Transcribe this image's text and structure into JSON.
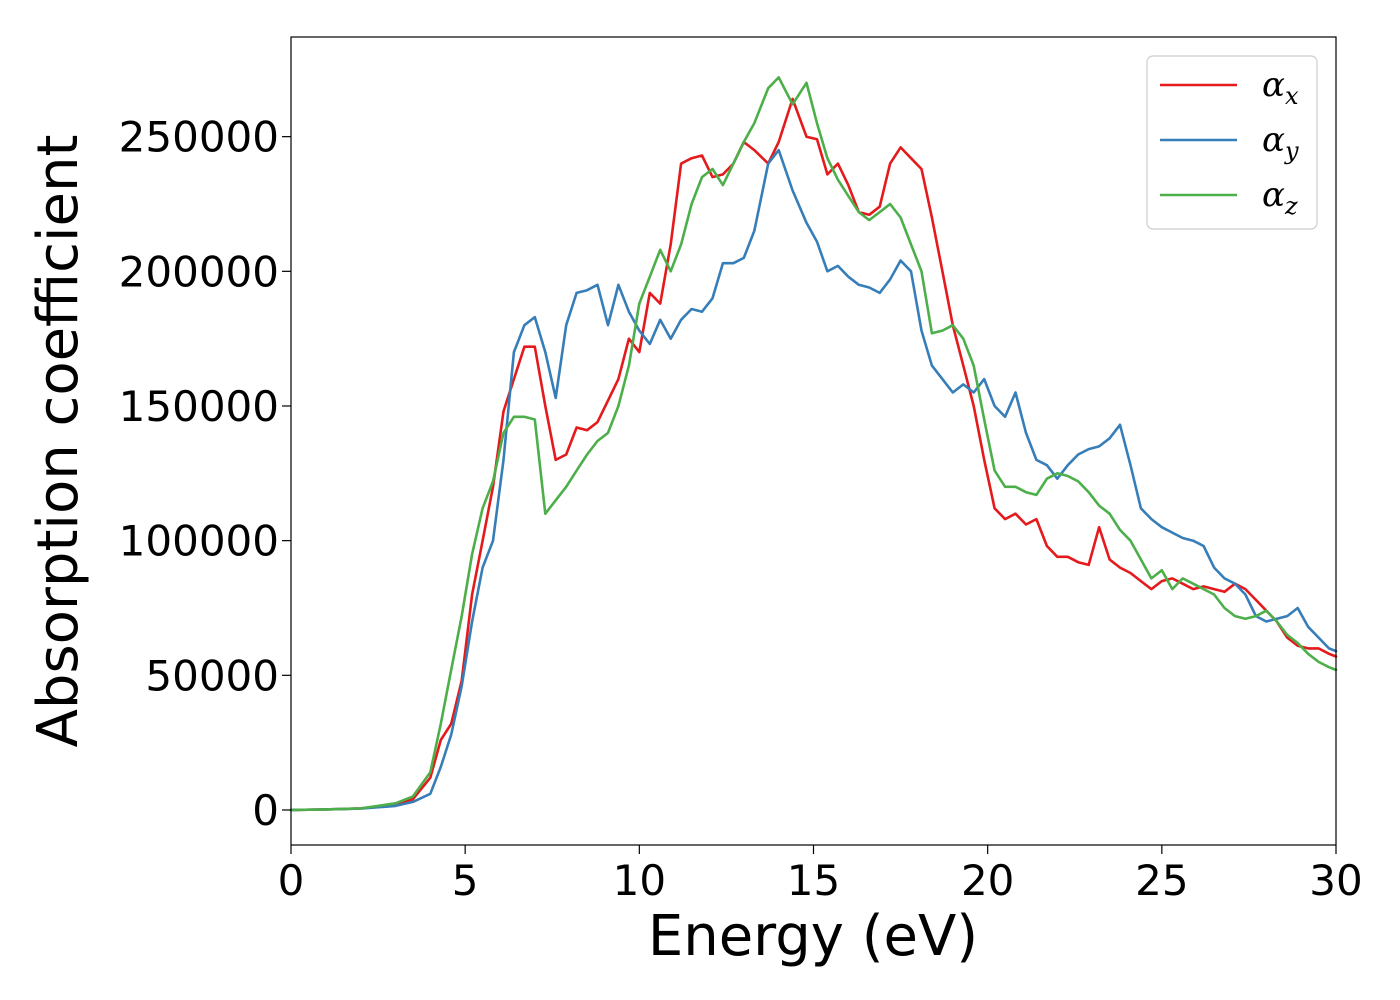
{
  "chart_data": {
    "type": "line",
    "title": "",
    "xlabel": "Energy (eV)",
    "ylabel": "Absorption coefficient",
    "xlim": [
      0,
      30
    ],
    "ylim": [
      -13000,
      287000
    ],
    "x_ticks": [
      0,
      5,
      10,
      15,
      20,
      25,
      30
    ],
    "y_ticks": [
      0,
      50000,
      100000,
      150000,
      200000,
      250000
    ],
    "x_tick_labels": [
      "0",
      "5",
      "10",
      "15",
      "20",
      "25",
      "30"
    ],
    "y_tick_labels": [
      "0",
      "50000",
      "100000",
      "150000",
      "200000",
      "250000"
    ],
    "grid": false,
    "legend_position": "top-right",
    "series": [
      {
        "name": "α_x",
        "label_base": "α",
        "label_sub": "x",
        "color": "#e41a1c",
        "x": [
          0,
          1,
          2,
          3,
          3.5,
          4,
          4.3,
          4.6,
          4.9,
          5.2,
          5.5,
          5.8,
          6.1,
          6.4,
          6.7,
          7.0,
          7.3,
          7.6,
          7.9,
          8.2,
          8.5,
          8.8,
          9.1,
          9.4,
          9.7,
          10.0,
          10.3,
          10.6,
          10.9,
          11.2,
          11.5,
          11.8,
          12.1,
          12.4,
          12.7,
          13.0,
          13.3,
          13.7,
          14.0,
          14.4,
          14.8,
          15.1,
          15.4,
          15.7,
          16.0,
          16.3,
          16.6,
          16.9,
          17.2,
          17.5,
          17.8,
          18.1,
          18.4,
          18.7,
          19.0,
          19.3,
          19.6,
          19.9,
          20.2,
          20.5,
          20.8,
          21.1,
          21.4,
          21.7,
          22.0,
          22.3,
          22.6,
          22.9,
          23.2,
          23.5,
          23.8,
          24.1,
          24.4,
          24.7,
          25.0,
          25.3,
          25.6,
          25.9,
          26.2,
          26.5,
          26.8,
          27.1,
          27.4,
          27.7,
          28.0,
          28.3,
          28.6,
          28.9,
          29.2,
          29.5,
          29.8,
          30.0
        ],
        "y": [
          0,
          200,
          600,
          2000,
          4000,
          12000,
          26000,
          32000,
          48000,
          80000,
          100000,
          120000,
          148000,
          160000,
          172000,
          172000,
          150000,
          130000,
          132000,
          142000,
          141000,
          144000,
          152000,
          160000,
          175000,
          170000,
          192000,
          188000,
          210000,
          240000,
          242000,
          243000,
          235000,
          236000,
          240000,
          248000,
          245000,
          240000,
          248000,
          264000,
          250000,
          249000,
          236000,
          240000,
          232000,
          222000,
          221000,
          224000,
          240000,
          246000,
          242000,
          238000,
          220000,
          200000,
          180000,
          165000,
          150000,
          130000,
          112000,
          108000,
          110000,
          106000,
          108000,
          98000,
          94000,
          94000,
          92000,
          91000,
          105000,
          93000,
          90000,
          88000,
          85000,
          82000,
          85000,
          86000,
          84000,
          82000,
          83000,
          82000,
          81000,
          84000,
          82000,
          78000,
          74000,
          70000,
          64000,
          61000,
          60000,
          60000,
          58000,
          57000
        ]
      },
      {
        "name": "α_y",
        "label_base": "α",
        "label_sub": "y",
        "color": "#377eb8",
        "x": [
          0,
          1,
          2,
          3,
          3.5,
          4,
          4.3,
          4.6,
          4.9,
          5.2,
          5.5,
          5.8,
          6.1,
          6.4,
          6.7,
          7.0,
          7.3,
          7.6,
          7.9,
          8.2,
          8.5,
          8.8,
          9.1,
          9.4,
          9.7,
          10.0,
          10.3,
          10.6,
          10.9,
          11.2,
          11.5,
          11.8,
          12.1,
          12.4,
          12.7,
          13.0,
          13.3,
          13.7,
          14.0,
          14.4,
          14.8,
          15.1,
          15.4,
          15.7,
          16.0,
          16.3,
          16.6,
          16.9,
          17.2,
          17.5,
          17.8,
          18.1,
          18.4,
          18.7,
          19.0,
          19.3,
          19.6,
          19.9,
          20.2,
          20.5,
          20.8,
          21.1,
          21.4,
          21.7,
          22.0,
          22.3,
          22.6,
          22.9,
          23.2,
          23.5,
          23.8,
          24.1,
          24.4,
          24.7,
          25.0,
          25.3,
          25.6,
          25.9,
          26.2,
          26.5,
          26.8,
          27.1,
          27.4,
          27.7,
          28.0,
          28.3,
          28.6,
          28.9,
          29.2,
          29.5,
          29.8,
          30.0
        ],
        "y": [
          0,
          200,
          500,
          1500,
          3000,
          6000,
          16000,
          28000,
          46000,
          70000,
          90000,
          100000,
          130000,
          170000,
          180000,
          183000,
          170000,
          153000,
          180000,
          192000,
          193000,
          195000,
          180000,
          195000,
          185000,
          178000,
          173000,
          182000,
          175000,
          182000,
          186000,
          185000,
          190000,
          203000,
          203000,
          205000,
          215000,
          240000,
          245000,
          230000,
          218000,
          211000,
          200000,
          202000,
          198000,
          195000,
          194000,
          192000,
          197000,
          204000,
          200000,
          178000,
          165000,
          160000,
          155000,
          158000,
          155000,
          160000,
          150000,
          146000,
          155000,
          140000,
          130000,
          128000,
          123000,
          128000,
          132000,
          134000,
          135000,
          138000,
          143000,
          128000,
          112000,
          108000,
          105000,
          103000,
          101000,
          100000,
          98000,
          90000,
          86000,
          84000,
          80000,
          72000,
          70000,
          71000,
          72000,
          75000,
          68000,
          64000,
          60000,
          59000
        ]
      },
      {
        "name": "α_z",
        "label_base": "α",
        "label_sub": "z",
        "color": "#4daf4a",
        "x": [
          0,
          1,
          2,
          3,
          3.5,
          4,
          4.3,
          4.6,
          4.9,
          5.2,
          5.5,
          5.8,
          6.1,
          6.4,
          6.7,
          7.0,
          7.3,
          7.6,
          7.9,
          8.2,
          8.5,
          8.8,
          9.1,
          9.4,
          9.7,
          10.0,
          10.3,
          10.6,
          10.9,
          11.2,
          11.5,
          11.8,
          12.1,
          12.4,
          12.7,
          13.0,
          13.3,
          13.7,
          14.0,
          14.4,
          14.8,
          15.1,
          15.4,
          15.7,
          16.0,
          16.3,
          16.6,
          16.9,
          17.2,
          17.5,
          17.8,
          18.1,
          18.4,
          18.7,
          19.0,
          19.3,
          19.6,
          19.9,
          20.2,
          20.5,
          20.8,
          21.1,
          21.4,
          21.7,
          22.0,
          22.3,
          22.6,
          22.9,
          23.2,
          23.5,
          23.8,
          24.1,
          24.4,
          24.7,
          25.0,
          25.3,
          25.6,
          25.9,
          26.2,
          26.5,
          26.8,
          27.1,
          27.4,
          27.7,
          28.0,
          28.3,
          28.6,
          28.9,
          29.2,
          29.5,
          29.8,
          30.0
        ],
        "y": [
          0,
          200,
          600,
          2500,
          5000,
          14000,
          32000,
          52000,
          72000,
          95000,
          112000,
          122000,
          140000,
          146000,
          146000,
          145000,
          110000,
          115000,
          120000,
          126000,
          132000,
          137000,
          140000,
          150000,
          165000,
          188000,
          198000,
          208000,
          200000,
          210000,
          225000,
          235000,
          238000,
          232000,
          240000,
          248000,
          255000,
          268000,
          272000,
          262000,
          270000,
          255000,
          242000,
          234000,
          228000,
          222000,
          219000,
          222000,
          225000,
          220000,
          210000,
          200000,
          177000,
          178000,
          180000,
          175000,
          165000,
          145000,
          126000,
          120000,
          120000,
          118000,
          117000,
          123000,
          125000,
          124000,
          122000,
          118000,
          113000,
          110000,
          104000,
          100000,
          93000,
          86000,
          89000,
          82000,
          86000,
          84000,
          82000,
          80000,
          75000,
          72000,
          71000,
          72000,
          74000,
          70000,
          65000,
          62000,
          58000,
          55000,
          53000,
          52000
        ]
      }
    ]
  }
}
